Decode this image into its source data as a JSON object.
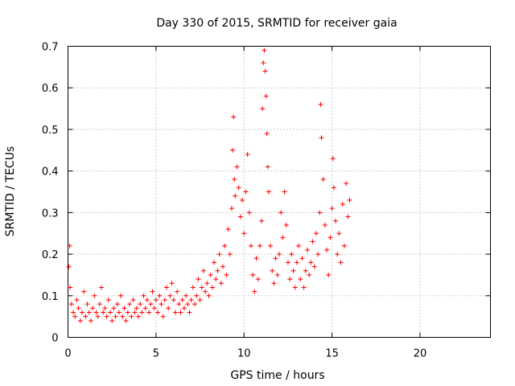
{
  "chart_data": {
    "type": "scatter",
    "title": "Day 330 of 2015, SRMTID for receiver gaia",
    "xlabel": "GPS time / hours",
    "ylabel": "SRMTID / TECUs",
    "xlim": [
      0,
      24
    ],
    "ylim": [
      0,
      0.7
    ],
    "x_ticks": [
      0,
      5,
      10,
      15,
      20
    ],
    "y_ticks": [
      0,
      0.1,
      0.2,
      0.3,
      0.4,
      0.5,
      0.6,
      0.7
    ],
    "grid": true,
    "marker": "+",
    "color": "#ff0000",
    "series": [
      {
        "name": "SRMTID",
        "points": [
          [
            0.05,
            0.17
          ],
          [
            0.1,
            0.22
          ],
          [
            0.12,
            0.12
          ],
          [
            0.2,
            0.08
          ],
          [
            0.3,
            0.06
          ],
          [
            0.4,
            0.05
          ],
          [
            0.5,
            0.09
          ],
          [
            0.6,
            0.07
          ],
          [
            0.7,
            0.04
          ],
          [
            0.8,
            0.06
          ],
          [
            0.9,
            0.11
          ],
          [
            1.0,
            0.05
          ],
          [
            1.1,
            0.08
          ],
          [
            1.2,
            0.06
          ],
          [
            1.3,
            0.04
          ],
          [
            1.4,
            0.07
          ],
          [
            1.5,
            0.1
          ],
          [
            1.6,
            0.06
          ],
          [
            1.7,
            0.05
          ],
          [
            1.8,
            0.08
          ],
          [
            1.9,
            0.12
          ],
          [
            2.0,
            0.06
          ],
          [
            2.1,
            0.07
          ],
          [
            2.2,
            0.05
          ],
          [
            2.3,
            0.09
          ],
          [
            2.4,
            0.06
          ],
          [
            2.5,
            0.04
          ],
          [
            2.6,
            0.07
          ],
          [
            2.7,
            0.05
          ],
          [
            2.8,
            0.08
          ],
          [
            2.9,
            0.06
          ],
          [
            3.0,
            0.1
          ],
          [
            3.1,
            0.05
          ],
          [
            3.2,
            0.07
          ],
          [
            3.3,
            0.04
          ],
          [
            3.4,
            0.06
          ],
          [
            3.5,
            0.08
          ],
          [
            3.6,
            0.05
          ],
          [
            3.7,
            0.09
          ],
          [
            3.8,
            0.06
          ],
          [
            3.9,
            0.07
          ],
          [
            4.0,
            0.05
          ],
          [
            4.1,
            0.08
          ],
          [
            4.2,
            0.06
          ],
          [
            4.3,
            0.1
          ],
          [
            4.4,
            0.07
          ],
          [
            4.5,
            0.09
          ],
          [
            4.6,
            0.06
          ],
          [
            4.7,
            0.08
          ],
          [
            4.8,
            0.11
          ],
          [
            4.9,
            0.07
          ],
          [
            5.0,
            0.09
          ],
          [
            5.1,
            0.06
          ],
          [
            5.2,
            0.1
          ],
          [
            5.3,
            0.08
          ],
          [
            5.4,
            0.05
          ],
          [
            5.5,
            0.09
          ],
          [
            5.6,
            0.12
          ],
          [
            5.7,
            0.07
          ],
          [
            5.8,
            0.1
          ],
          [
            5.9,
            0.13
          ],
          [
            6.0,
            0.09
          ],
          [
            6.1,
            0.06
          ],
          [
            6.2,
            0.11
          ],
          [
            6.3,
            0.08
          ],
          [
            6.4,
            0.06
          ],
          [
            6.5,
            0.09
          ],
          [
            6.6,
            0.07
          ],
          [
            6.7,
            0.1
          ],
          [
            6.8,
            0.08
          ],
          [
            6.9,
            0.06
          ],
          [
            7.0,
            0.09
          ],
          [
            7.1,
            0.12
          ],
          [
            7.2,
            0.08
          ],
          [
            7.3,
            0.1
          ],
          [
            7.4,
            0.14
          ],
          [
            7.5,
            0.09
          ],
          [
            7.6,
            0.12
          ],
          [
            7.7,
            0.16
          ],
          [
            7.8,
            0.11
          ],
          [
            7.9,
            0.13
          ],
          [
            8.0,
            0.1
          ],
          [
            8.1,
            0.15
          ],
          [
            8.2,
            0.12
          ],
          [
            8.3,
            0.18
          ],
          [
            8.4,
            0.14
          ],
          [
            8.5,
            0.16
          ],
          [
            8.6,
            0.2
          ],
          [
            8.7,
            0.13
          ],
          [
            8.8,
            0.17
          ],
          [
            8.9,
            0.22
          ],
          [
            9.0,
            0.15
          ],
          [
            9.1,
            0.26
          ],
          [
            9.2,
            0.2
          ],
          [
            9.3,
            0.31
          ],
          [
            9.35,
            0.45
          ],
          [
            9.4,
            0.53
          ],
          [
            9.45,
            0.38
          ],
          [
            9.5,
            0.34
          ],
          [
            9.6,
            0.41
          ],
          [
            9.7,
            0.36
          ],
          [
            9.8,
            0.29
          ],
          [
            9.9,
            0.33
          ],
          [
            10.0,
            0.25
          ],
          [
            10.1,
            0.35
          ],
          [
            10.2,
            0.44
          ],
          [
            10.3,
            0.3
          ],
          [
            10.4,
            0.22
          ],
          [
            10.5,
            0.15
          ],
          [
            10.6,
            0.11
          ],
          [
            10.7,
            0.19
          ],
          [
            10.8,
            0.14
          ],
          [
            10.9,
            0.22
          ],
          [
            11.0,
            0.28
          ],
          [
            11.05,
            0.55
          ],
          [
            11.1,
            0.66
          ],
          [
            11.15,
            0.69
          ],
          [
            11.2,
            0.64
          ],
          [
            11.25,
            0.58
          ],
          [
            11.3,
            0.49
          ],
          [
            11.35,
            0.41
          ],
          [
            11.4,
            0.35
          ],
          [
            11.5,
            0.22
          ],
          [
            11.6,
            0.16
          ],
          [
            11.7,
            0.13
          ],
          [
            11.8,
            0.19
          ],
          [
            11.9,
            0.15
          ],
          [
            12.0,
            0.2
          ],
          [
            12.1,
            0.3
          ],
          [
            12.2,
            0.24
          ],
          [
            12.3,
            0.35
          ],
          [
            12.4,
            0.27
          ],
          [
            12.5,
            0.18
          ],
          [
            12.6,
            0.14
          ],
          [
            12.7,
            0.2
          ],
          [
            12.8,
            0.16
          ],
          [
            12.9,
            0.12
          ],
          [
            13.0,
            0.18
          ],
          [
            13.1,
            0.22
          ],
          [
            13.2,
            0.14
          ],
          [
            13.3,
            0.19
          ],
          [
            13.4,
            0.12
          ],
          [
            13.5,
            0.16
          ],
          [
            13.6,
            0.21
          ],
          [
            13.7,
            0.15
          ],
          [
            13.8,
            0.18
          ],
          [
            13.9,
            0.23
          ],
          [
            14.0,
            0.17
          ],
          [
            14.1,
            0.25
          ],
          [
            14.2,
            0.2
          ],
          [
            14.3,
            0.3
          ],
          [
            14.35,
            0.56
          ],
          [
            14.4,
            0.48
          ],
          [
            14.5,
            0.38
          ],
          [
            14.6,
            0.27
          ],
          [
            14.7,
            0.21
          ],
          [
            14.8,
            0.15
          ],
          [
            14.9,
            0.24
          ],
          [
            15.0,
            0.31
          ],
          [
            15.05,
            0.43
          ],
          [
            15.1,
            0.36
          ],
          [
            15.2,
            0.28
          ],
          [
            15.3,
            0.2
          ],
          [
            15.4,
            0.25
          ],
          [
            15.5,
            0.18
          ],
          [
            15.6,
            0.32
          ],
          [
            15.7,
            0.22
          ],
          [
            15.8,
            0.37
          ],
          [
            15.9,
            0.29
          ],
          [
            16.0,
            0.33
          ]
        ]
      }
    ]
  }
}
